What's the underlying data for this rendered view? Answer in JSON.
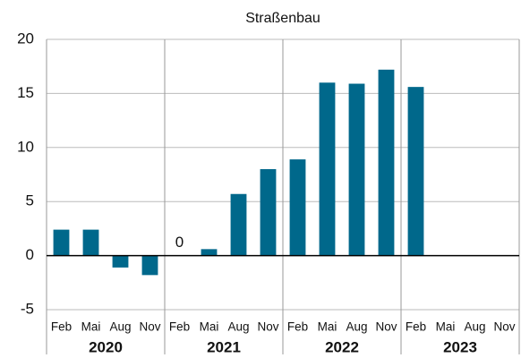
{
  "chart_data": {
    "type": "bar",
    "title": "Straßenbau",
    "categories": [
      "Feb",
      "Mai",
      "Aug",
      "Nov",
      "Feb",
      "Mai",
      "Aug",
      "Nov",
      "Feb",
      "Mai",
      "Aug",
      "Nov",
      "Feb",
      "Mai",
      "Aug",
      "Nov"
    ],
    "years": [
      "2020",
      "2021",
      "2022",
      "2023"
    ],
    "values": [
      2.4,
      2.4,
      -1.1,
      -1.8,
      0,
      0.6,
      5.7,
      8.0,
      8.9,
      16.0,
      15.9,
      17.2,
      15.6,
      null,
      null,
      null
    ],
    "value_labels": [
      null,
      null,
      null,
      null,
      "0",
      null,
      null,
      null,
      null,
      null,
      null,
      null,
      null,
      null,
      null,
      null
    ],
    "color": "#00688b",
    "ylim": [
      -5,
      20
    ],
    "yticks": [
      -5,
      0,
      5,
      10,
      15,
      20
    ],
    "grid": true
  }
}
